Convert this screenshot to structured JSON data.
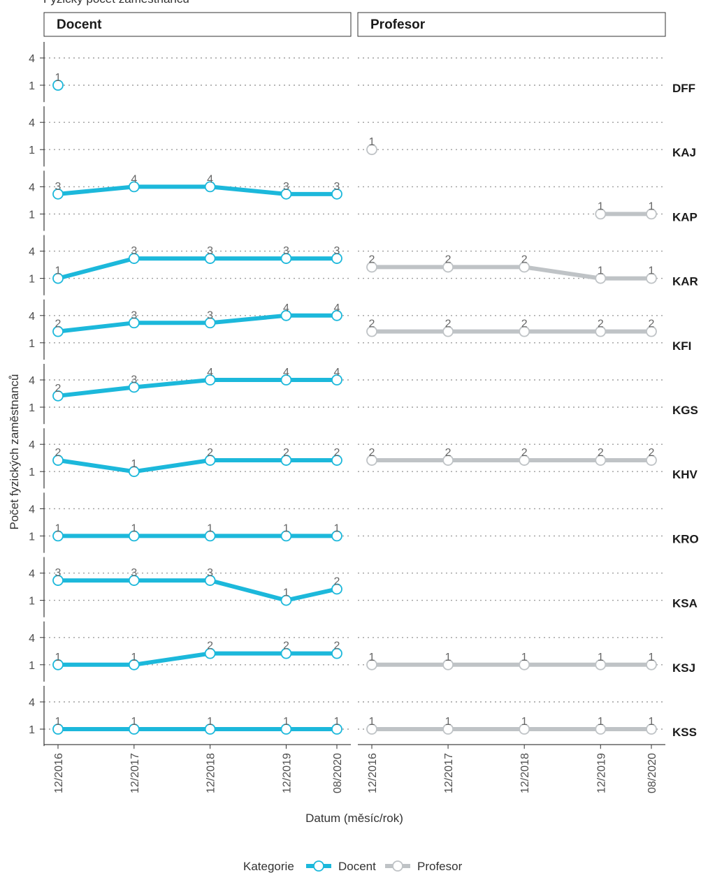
{
  "chart_data": {
    "type": "line",
    "title": "Fyzický počet zaměstnanců",
    "xlabel": "Datum (měsíc/rok)",
    "ylabel": "Počet fyzických zaměstnanců",
    "x": [
      "12/2016",
      "12/2017",
      "12/2018",
      "12/2019",
      "08/2020"
    ],
    "y_ticks": [
      1,
      4
    ],
    "y_scale": "sqrt",
    "grid": "horizontal dotted",
    "facets": {
      "columns": [
        "Docent",
        "Profesor"
      ],
      "rows": [
        "DFF",
        "KAJ",
        "KAP",
        "KAR",
        "KFI",
        "KGS",
        "KHV",
        "KRO",
        "KSA",
        "KSJ",
        "KSS"
      ]
    },
    "series": [
      {
        "name": "Docent",
        "color": "#1CB8DB",
        "values": {
          "DFF": [
            1,
            null,
            null,
            null,
            null
          ],
          "KAJ": [
            null,
            null,
            null,
            null,
            null
          ],
          "KAP": [
            3,
            4,
            4,
            3,
            3
          ],
          "KAR": [
            1,
            3,
            3,
            3,
            3
          ],
          "KFI": [
            2,
            3,
            3,
            4,
            4
          ],
          "KGS": [
            2,
            3,
            4,
            4,
            4
          ],
          "KHV": [
            2,
            1,
            2,
            2,
            2
          ],
          "KRO": [
            1,
            1,
            1,
            1,
            1
          ],
          "KSA": [
            3,
            3,
            3,
            1,
            2
          ],
          "KSJ": [
            1,
            1,
            2,
            2,
            2
          ],
          "KSS": [
            1,
            1,
            1,
            1,
            1
          ]
        }
      },
      {
        "name": "Profesor",
        "color": "#BFC3C6",
        "values": {
          "DFF": [
            null,
            null,
            null,
            null,
            null
          ],
          "KAJ": [
            1,
            null,
            null,
            null,
            null
          ],
          "KAP": [
            null,
            null,
            null,
            1,
            1
          ],
          "KAR": [
            2,
            2,
            2,
            1,
            1
          ],
          "KFI": [
            2,
            2,
            2,
            2,
            2
          ],
          "KGS": [
            null,
            null,
            null,
            null,
            null
          ],
          "KHV": [
            2,
            2,
            2,
            2,
            2
          ],
          "KRO": [
            null,
            null,
            null,
            null,
            null
          ],
          "KSA": [
            null,
            null,
            null,
            null,
            null
          ],
          "KSJ": [
            1,
            1,
            1,
            1,
            1
          ],
          "KSS": [
            1,
            1,
            1,
            1,
            1
          ]
        }
      }
    ],
    "legend": {
      "title": "Kategorie",
      "position": "bottom",
      "items": [
        "Docent",
        "Profesor"
      ]
    }
  }
}
